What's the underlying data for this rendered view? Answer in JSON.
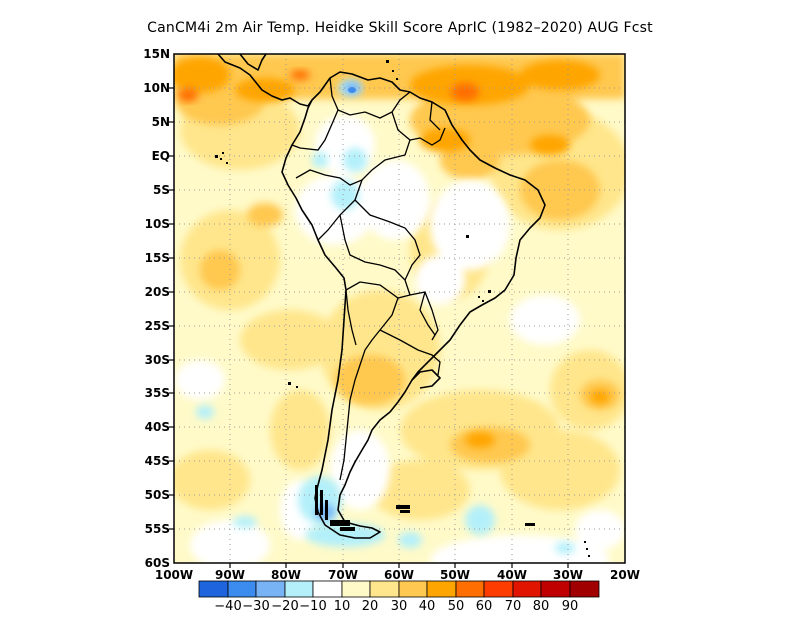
{
  "title": "CanCM4i  2m Air Temp. Heidke Skill Score AprIC (1982–2020) AUG Fcst",
  "lat_labels": [
    "15N",
    "10N",
    "5N",
    "EQ",
    "5S",
    "10S",
    "15S",
    "20S",
    "25S",
    "30S",
    "35S",
    "40S",
    "45S",
    "50S",
    "55S",
    "60S"
  ],
  "lon_labels": [
    "100W",
    "90W",
    "80W",
    "70W",
    "60W",
    "50W",
    "40W",
    "30W",
    "20W"
  ],
  "colorbar": {
    "colors": [
      "#1e64dc",
      "#3c8cf0",
      "#78b4f5",
      "#b4f0fa",
      "#ffffff",
      "#fffac8",
      "#ffe68c",
      "#ffc850",
      "#ffa500",
      "#ff6e00",
      "#ff3c00",
      "#e11400",
      "#c00000",
      "#a00000"
    ],
    "labels": [
      "−40",
      "−30",
      "−20",
      "−10",
      "10",
      "20",
      "30",
      "40",
      "50",
      "60",
      "70",
      "80",
      "90"
    ]
  }
}
